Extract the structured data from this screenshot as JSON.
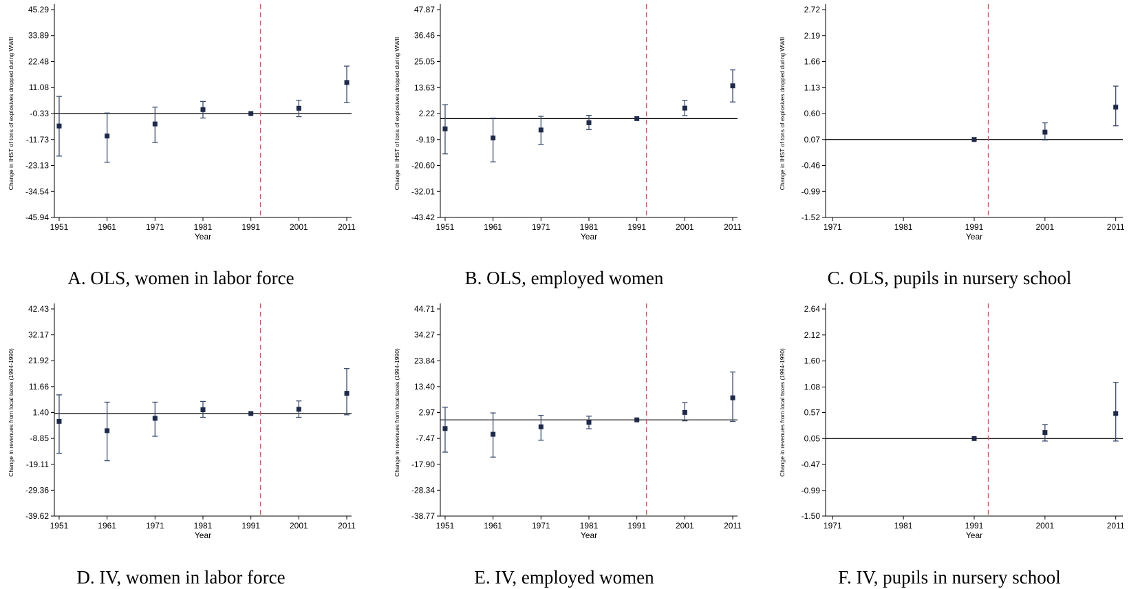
{
  "chart_data": [
    {
      "type": "scatter",
      "panel": "A",
      "caption": "A. OLS, women in labor force",
      "ylabel": "Change in IHST of tons of explosives dropped during WWII",
      "xlabel": "Year",
      "x_ticks": [
        "1951",
        "1961",
        "1971",
        "1981",
        "1991",
        "2001",
        "2011"
      ],
      "y_ticks": [
        "45.29",
        "33.89",
        "22.48",
        "11.08",
        "-0.33",
        "-11.73",
        "-23.13",
        "-34.54",
        "-45.94"
      ],
      "xlim": [
        1950,
        2012
      ],
      "ylim": [
        -45.94,
        45.29
      ],
      "reference_y": -0.33,
      "vline_x": 1993,
      "series": [
        {
          "x": [
            1951,
            1961,
            1971,
            1981,
            1991,
            2001,
            2011
          ],
          "y": [
            -5.8,
            -10.2,
            -4.9,
            1.4,
            -0.33,
            2.0,
            13.3
          ],
          "lower": [
            -19.0,
            -21.7,
            -13.0,
            -2.3,
            -0.33,
            -1.7,
            4.5
          ],
          "upper": [
            7.2,
            -0.1,
            2.5,
            5.0,
            -0.33,
            5.5,
            20.5
          ]
        }
      ]
    },
    {
      "type": "scatter",
      "panel": "B",
      "caption": "B. OLS, employed women",
      "ylabel": "Change in IHST of tons of explosives dropped during WWII",
      "xlabel": "Year",
      "x_ticks": [
        "1951",
        "1961",
        "1971",
        "1981",
        "1991",
        "2001",
        "2011"
      ],
      "y_ticks": [
        "47.87",
        "36.46",
        "25.05",
        "13.63",
        "2.22",
        "-9.19",
        "-20.60",
        "-32.01",
        "-43.42"
      ],
      "xlim": [
        1950,
        2012
      ],
      "ylim": [
        -43.42,
        47.87
      ],
      "reference_y": 0.0,
      "vline_x": 1993,
      "series": [
        {
          "x": [
            1951,
            1961,
            1971,
            1981,
            1991,
            2001,
            2011
          ],
          "y": [
            -4.5,
            -8.5,
            -5.0,
            -1.8,
            0.0,
            4.6,
            14.4
          ],
          "lower": [
            -15.5,
            -19.0,
            -11.3,
            -4.8,
            0.0,
            1.3,
            7.3
          ],
          "upper": [
            6.1,
            0.2,
            1.0,
            1.4,
            0.0,
            8.0,
            21.4
          ]
        }
      ]
    },
    {
      "type": "scatter",
      "panel": "C",
      "caption": "C. OLS, pupils in nursery school",
      "ylabel": "Change in IHST of tons of explosives dropped during WWII",
      "xlabel": "Year",
      "x_ticks": [
        "1971",
        "1981",
        "1991",
        "2001",
        "2011"
      ],
      "y_ticks": [
        "2.72",
        "2.19",
        "1.66",
        "1.13",
        "0.60",
        "0.07",
        "-0.46",
        "-0.99",
        "-1.52"
      ],
      "xlim": [
        1970,
        2012
      ],
      "ylim": [
        -1.52,
        2.72
      ],
      "reference_y": 0.07,
      "vline_x": 1993,
      "series": [
        {
          "x": [
            1991,
            2001,
            2011
          ],
          "y": [
            0.07,
            0.22,
            0.73
          ],
          "lower": [
            0.07,
            0.06,
            0.35
          ],
          "upper": [
            0.07,
            0.41,
            1.16
          ]
        }
      ]
    },
    {
      "type": "scatter",
      "panel": "D",
      "caption": "D. IV, women in labor force",
      "ylabel": "Change in revenues from local taxes (1994-1990)",
      "xlabel": "Year",
      "x_ticks": [
        "1951",
        "1961",
        "1971",
        "1981",
        "1991",
        "2001",
        "2011"
      ],
      "y_ticks": [
        "42.43",
        "32.17",
        "21.92",
        "11.66",
        "1.40",
        "-8.85",
        "-19.11",
        "-29.36",
        "-39.62"
      ],
      "xlim": [
        1950,
        2012
      ],
      "ylim": [
        -39.62,
        42.43
      ],
      "reference_y": 1.0,
      "vline_x": 1993,
      "series": [
        {
          "x": [
            1951,
            1961,
            1971,
            1981,
            1991,
            2001,
            2011
          ],
          "y": [
            -2.1,
            -5.8,
            -0.9,
            2.5,
            1.0,
            2.7,
            9.0
          ],
          "lower": [
            -14.8,
            -17.7,
            -8.0,
            -0.5,
            1.0,
            -0.5,
            0.5
          ],
          "upper": [
            8.4,
            5.5,
            5.5,
            5.8,
            1.0,
            6.0,
            18.8
          ]
        }
      ]
    },
    {
      "type": "scatter",
      "panel": "E",
      "caption": "E. IV, employed women",
      "ylabel": "Change in revenues from local taxes (1994-1990)",
      "xlabel": "Year",
      "x_ticks": [
        "1951",
        "1961",
        "1971",
        "1981",
        "1991",
        "2001",
        "2011"
      ],
      "y_ticks": [
        "44.71",
        "34.27",
        "23.84",
        "13.40",
        "2.97",
        "-7.47",
        "-17.90",
        "-28.34",
        "-38.77"
      ],
      "xlim": [
        1950,
        2012
      ],
      "ylim": [
        -38.77,
        44.71
      ],
      "reference_y": 0.0,
      "vline_x": 1993,
      "series": [
        {
          "x": [
            1951,
            1961,
            1971,
            1981,
            1991,
            2001,
            2011
          ],
          "y": [
            -3.5,
            -5.8,
            -2.8,
            -1.0,
            0.0,
            3.0,
            8.9
          ],
          "lower": [
            -13.0,
            -15.0,
            -8.2,
            -3.6,
            0.0,
            -0.4,
            -0.6
          ],
          "upper": [
            5.1,
            2.8,
            1.8,
            1.5,
            0.0,
            7.0,
            19.3
          ]
        }
      ]
    },
    {
      "type": "scatter",
      "panel": "F",
      "caption": "F. IV, pupils in nursery school",
      "ylabel": "Change in revenues from local taxes (1994-1990)",
      "xlabel": "Year",
      "x_ticks": [
        "1971",
        "1981",
        "1991",
        "2001",
        "2011"
      ],
      "y_ticks": [
        "2.64",
        "2.12",
        "1.60",
        "1.08",
        "0.57",
        "0.05",
        "-0.47",
        "-0.99",
        "-1.50"
      ],
      "xlim": [
        1970,
        2012
      ],
      "ylim": [
        -1.5,
        2.64
      ],
      "reference_y": 0.05,
      "vline_x": 1993,
      "series": [
        {
          "x": [
            1991,
            2001,
            2011
          ],
          "y": [
            0.05,
            0.17,
            0.55
          ],
          "lower": [
            0.05,
            0.0,
            0.0
          ],
          "upper": [
            0.05,
            0.33,
            1.17
          ]
        }
      ]
    }
  ]
}
